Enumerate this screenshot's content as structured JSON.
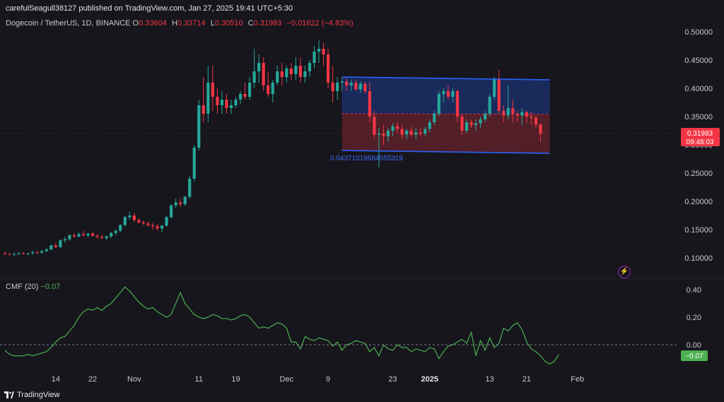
{
  "header": {
    "published": "carefulSeagull38127 published on TradingView.com, Jan 27, 2025 19:41 UTC+5:30"
  },
  "symbol": {
    "name": "Dogecoin / TetherUS, 1D, BINANCE",
    "o_label": "O",
    "o": "0.33604",
    "h_label": "H",
    "h": "0.33714",
    "l_label": "L",
    "l": "0.30510",
    "c_label": "C",
    "c": "0.31983",
    "change": "−0.01622 (−4.83%)"
  },
  "price_badge": {
    "price": "0.31983",
    "countdown": "09:48:03",
    "color": "#f23645"
  },
  "cmf": {
    "name": "CMF (20)",
    "value": "−0.07",
    "badge": "−0.07",
    "color": "#4caf50"
  },
  "annotation": {
    "text": "0.04371019684555319"
  },
  "footer": {
    "brand": "TradingView"
  },
  "colors": {
    "up": "#26a69a",
    "down": "#f23645",
    "channel_upper": "#2962ff",
    "channel_lower": "#f23645"
  },
  "chart_data": {
    "type": "candlestick",
    "price_axis": {
      "min": 0.08,
      "max": 0.51,
      "ticks": [
        "0.50000",
        "0.45000",
        "0.40000",
        "0.35000",
        "0.30000",
        "0.25000",
        "0.20000",
        "0.15000",
        "0.10000"
      ]
    },
    "cmf_axis": {
      "min": -0.28,
      "max": 0.52,
      "ticks": [
        "0.40",
        "0.20",
        "0.00"
      ]
    },
    "x_ticks": [
      "14",
      "22",
      "Nov",
      "11",
      "19",
      "Dec",
      "9",
      "23",
      "2025",
      "13",
      "21",
      "Feb"
    ],
    "x_tick_index": [
      11,
      19,
      28,
      42,
      50,
      61,
      70,
      84,
      92,
      105,
      113,
      124
    ],
    "channel": {
      "start_index": 73,
      "end_index": 118,
      "upper": [
        0.42,
        0.415
      ],
      "mid": [
        0.355,
        0.354
      ],
      "lower": [
        0.29,
        0.285
      ]
    },
    "candles": [
      [
        0.108,
        0.111,
        0.105,
        0.107
      ],
      [
        0.107,
        0.109,
        0.104,
        0.106
      ],
      [
        0.106,
        0.109,
        0.103,
        0.107
      ],
      [
        0.107,
        0.11,
        0.105,
        0.108
      ],
      [
        0.108,
        0.11,
        0.106,
        0.107
      ],
      [
        0.107,
        0.109,
        0.105,
        0.108
      ],
      [
        0.108,
        0.113,
        0.106,
        0.11
      ],
      [
        0.11,
        0.112,
        0.107,
        0.109
      ],
      [
        0.109,
        0.114,
        0.108,
        0.112
      ],
      [
        0.112,
        0.117,
        0.11,
        0.115
      ],
      [
        0.115,
        0.124,
        0.113,
        0.122
      ],
      [
        0.122,
        0.127,
        0.118,
        0.119
      ],
      [
        0.119,
        0.133,
        0.118,
        0.131
      ],
      [
        0.131,
        0.137,
        0.127,
        0.133
      ],
      [
        0.133,
        0.142,
        0.13,
        0.14
      ],
      [
        0.14,
        0.144,
        0.135,
        0.138
      ],
      [
        0.138,
        0.145,
        0.136,
        0.142
      ],
      [
        0.142,
        0.148,
        0.138,
        0.14
      ],
      [
        0.14,
        0.144,
        0.136,
        0.143
      ],
      [
        0.143,
        0.146,
        0.138,
        0.139
      ],
      [
        0.139,
        0.142,
        0.134,
        0.137
      ],
      [
        0.137,
        0.141,
        0.133,
        0.135
      ],
      [
        0.135,
        0.14,
        0.131,
        0.138
      ],
      [
        0.138,
        0.146,
        0.135,
        0.144
      ],
      [
        0.144,
        0.15,
        0.14,
        0.148
      ],
      [
        0.148,
        0.16,
        0.145,
        0.158
      ],
      [
        0.158,
        0.175,
        0.155,
        0.172
      ],
      [
        0.172,
        0.182,
        0.167,
        0.175
      ],
      [
        0.175,
        0.18,
        0.163,
        0.167
      ],
      [
        0.167,
        0.17,
        0.16,
        0.163
      ],
      [
        0.163,
        0.166,
        0.158,
        0.161
      ],
      [
        0.161,
        0.164,
        0.155,
        0.158
      ],
      [
        0.158,
        0.162,
        0.15,
        0.156
      ],
      [
        0.156,
        0.16,
        0.148,
        0.152
      ],
      [
        0.152,
        0.158,
        0.145,
        0.157
      ],
      [
        0.157,
        0.175,
        0.155,
        0.172
      ],
      [
        0.172,
        0.195,
        0.17,
        0.193
      ],
      [
        0.193,
        0.205,
        0.188,
        0.198
      ],
      [
        0.198,
        0.205,
        0.19,
        0.195
      ],
      [
        0.195,
        0.21,
        0.192,
        0.208
      ],
      [
        0.208,
        0.245,
        0.205,
        0.24
      ],
      [
        0.24,
        0.3,
        0.235,
        0.295
      ],
      [
        0.295,
        0.38,
        0.29,
        0.37
      ],
      [
        0.37,
        0.42,
        0.34,
        0.355
      ],
      [
        0.355,
        0.44,
        0.34,
        0.41
      ],
      [
        0.41,
        0.44,
        0.36,
        0.385
      ],
      [
        0.385,
        0.4,
        0.355,
        0.37
      ],
      [
        0.37,
        0.395,
        0.355,
        0.38
      ],
      [
        0.38,
        0.39,
        0.355,
        0.365
      ],
      [
        0.365,
        0.38,
        0.355,
        0.37
      ],
      [
        0.37,
        0.385,
        0.365,
        0.38
      ],
      [
        0.38,
        0.395,
        0.372,
        0.39
      ],
      [
        0.39,
        0.41,
        0.38,
        0.385
      ],
      [
        0.385,
        0.42,
        0.38,
        0.41
      ],
      [
        0.41,
        0.47,
        0.4,
        0.43
      ],
      [
        0.43,
        0.46,
        0.41,
        0.445
      ],
      [
        0.445,
        0.455,
        0.395,
        0.405
      ],
      [
        0.405,
        0.43,
        0.385,
        0.39
      ],
      [
        0.39,
        0.415,
        0.375,
        0.41
      ],
      [
        0.41,
        0.44,
        0.405,
        0.43
      ],
      [
        0.43,
        0.445,
        0.405,
        0.42
      ],
      [
        0.42,
        0.44,
        0.41,
        0.435
      ],
      [
        0.435,
        0.445,
        0.415,
        0.425
      ],
      [
        0.425,
        0.455,
        0.415,
        0.44
      ],
      [
        0.44,
        0.455,
        0.41,
        0.42
      ],
      [
        0.42,
        0.44,
        0.41,
        0.43
      ],
      [
        0.43,
        0.45,
        0.42,
        0.445
      ],
      [
        0.445,
        0.475,
        0.435,
        0.465
      ],
      [
        0.465,
        0.485,
        0.445,
        0.47
      ],
      [
        0.47,
        0.48,
        0.44,
        0.46
      ],
      [
        0.46,
        0.47,
        0.4,
        0.41
      ],
      [
        0.41,
        0.44,
        0.375,
        0.395
      ],
      [
        0.395,
        0.42,
        0.38,
        0.41
      ],
      [
        0.41,
        0.42,
        0.395,
        0.412
      ],
      [
        0.412,
        0.418,
        0.395,
        0.405
      ],
      [
        0.405,
        0.415,
        0.395,
        0.41
      ],
      [
        0.41,
        0.415,
        0.395,
        0.398
      ],
      [
        0.398,
        0.412,
        0.392,
        0.408
      ],
      [
        0.408,
        0.412,
        0.39,
        0.395
      ],
      [
        0.395,
        0.41,
        0.34,
        0.35
      ],
      [
        0.35,
        0.36,
        0.31,
        0.318
      ],
      [
        0.318,
        0.33,
        0.26,
        0.32
      ],
      [
        0.32,
        0.335,
        0.3,
        0.315
      ],
      [
        0.315,
        0.33,
        0.305,
        0.325
      ],
      [
        0.325,
        0.338,
        0.315,
        0.333
      ],
      [
        0.333,
        0.34,
        0.32,
        0.328
      ],
      [
        0.328,
        0.335,
        0.31,
        0.318
      ],
      [
        0.318,
        0.328,
        0.31,
        0.325
      ],
      [
        0.325,
        0.332,
        0.314,
        0.318
      ],
      [
        0.318,
        0.33,
        0.31,
        0.322
      ],
      [
        0.322,
        0.33,
        0.315,
        0.32
      ],
      [
        0.32,
        0.332,
        0.315,
        0.328
      ],
      [
        0.328,
        0.345,
        0.322,
        0.34
      ],
      [
        0.34,
        0.36,
        0.335,
        0.355
      ],
      [
        0.355,
        0.395,
        0.35,
        0.39
      ],
      [
        0.39,
        0.4,
        0.375,
        0.395
      ],
      [
        0.395,
        0.405,
        0.38,
        0.385
      ],
      [
        0.385,
        0.4,
        0.375,
        0.395
      ],
      [
        0.395,
        0.398,
        0.34,
        0.35
      ],
      [
        0.35,
        0.355,
        0.318,
        0.325
      ],
      [
        0.325,
        0.345,
        0.32,
        0.34
      ],
      [
        0.34,
        0.345,
        0.33,
        0.335
      ],
      [
        0.335,
        0.345,
        0.325,
        0.338
      ],
      [
        0.338,
        0.35,
        0.33,
        0.345
      ],
      [
        0.345,
        0.36,
        0.34,
        0.355
      ],
      [
        0.355,
        0.39,
        0.35,
        0.385
      ],
      [
        0.385,
        0.42,
        0.38,
        0.415
      ],
      [
        0.415,
        0.432,
        0.355,
        0.36
      ],
      [
        0.36,
        0.37,
        0.34,
        0.352
      ],
      [
        0.352,
        0.405,
        0.345,
        0.365
      ],
      [
        0.365,
        0.38,
        0.34,
        0.355
      ],
      [
        0.355,
        0.36,
        0.34,
        0.352
      ],
      [
        0.352,
        0.365,
        0.335,
        0.358
      ],
      [
        0.358,
        0.36,
        0.34,
        0.35
      ],
      [
        0.35,
        0.358,
        0.335,
        0.348
      ],
      [
        0.348,
        0.352,
        0.33,
        0.336
      ],
      [
        0.336,
        0.337,
        0.305,
        0.32
      ]
    ],
    "cmf": [
      -0.04,
      -0.07,
      -0.08,
      -0.08,
      -0.08,
      -0.07,
      -0.08,
      -0.07,
      -0.06,
      -0.05,
      -0.02,
      0.02,
      0.05,
      0.06,
      0.1,
      0.14,
      0.2,
      0.24,
      0.26,
      0.25,
      0.27,
      0.25,
      0.28,
      0.3,
      0.34,
      0.38,
      0.42,
      0.39,
      0.35,
      0.31,
      0.28,
      0.26,
      0.27,
      0.24,
      0.22,
      0.2,
      0.22,
      0.3,
      0.38,
      0.3,
      0.26,
      0.22,
      0.2,
      0.19,
      0.2,
      0.22,
      0.21,
      0.19,
      0.19,
      0.18,
      0.19,
      0.21,
      0.22,
      0.2,
      0.16,
      0.12,
      0.13,
      0.12,
      0.14,
      0.16,
      0.15,
      0.12,
      0.02,
      0.02,
      -0.03,
      0.06,
      0.04,
      0.03,
      0.05,
      0.04,
      0.03,
      -0.01,
      0.02,
      -0.04,
      0.0,
      0.01,
      0.03,
      0.02,
      0.01,
      -0.05,
      -0.02,
      -0.08,
      0.0,
      -0.03,
      -0.04,
      0.0,
      -0.02,
      -0.02,
      -0.05,
      -0.03,
      -0.04,
      -0.05,
      -0.02,
      -0.03,
      -0.1,
      -0.05,
      -0.01,
      0.0,
      0.02,
      0.04,
      0.01,
      0.09,
      -0.08,
      0.03,
      -0.04,
      0.05,
      -0.02,
      0.01,
      0.12,
      0.1,
      0.14,
      0.16,
      0.11,
      0.02,
      -0.03,
      -0.05,
      -0.08,
      -0.12,
      -0.14,
      -0.12,
      -0.07
    ]
  }
}
